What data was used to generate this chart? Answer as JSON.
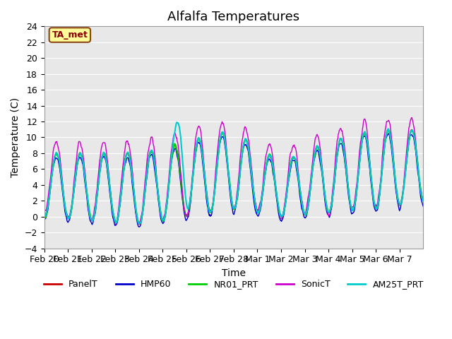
{
  "title": "Alfalfa Temperatures",
  "xlabel": "Time",
  "ylabel": "Temperature (C)",
  "ylim": [
    -4,
    24
  ],
  "yticks": [
    -4,
    -2,
    0,
    2,
    4,
    6,
    8,
    10,
    12,
    14,
    16,
    18,
    20,
    22,
    24
  ],
  "date_labels": [
    "Feb 20",
    "Feb 21",
    "Feb 22",
    "Feb 23",
    "Feb 24",
    "Feb 25",
    "Feb 26",
    "Feb 27",
    "Feb 28",
    "Mar 1",
    "Mar 2",
    "Mar 3",
    "Mar 4",
    "Mar 5",
    "Mar 6",
    "Mar 7"
  ],
  "annotation_text": "TA_met",
  "annotation_facecolor": "#FFFF99",
  "annotation_edgecolor": "#8B4513",
  "lines": {
    "PanelT": {
      "color": "#CC0000",
      "lw": 1.0
    },
    "HMP60": {
      "color": "#0000CC",
      "lw": 1.0
    },
    "NR01_PRT": {
      "color": "#00CC00",
      "lw": 1.5
    },
    "SonicT": {
      "color": "#CC00CC",
      "lw": 1.0
    },
    "AM25T_PRT": {
      "color": "#00CCCC",
      "lw": 1.5
    }
  },
  "bg_color": "#E8E8E8",
  "fig_color": "#FFFFFF",
  "title_fontsize": 13,
  "axis_fontsize": 10,
  "tick_fontsize": 9
}
